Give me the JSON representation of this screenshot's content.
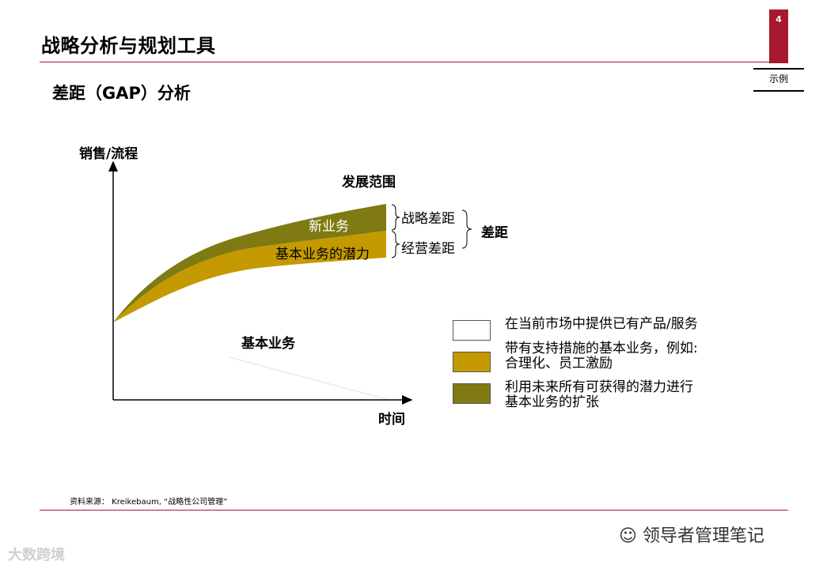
{
  "page_number": "4",
  "title": "战略分析与规划工具",
  "sample_label": "示例",
  "subtitle": "差距（GAP）分析",
  "diagram": {
    "y_axis_label": "销售/流程",
    "x_axis_label": "时间",
    "top_label": "发展范围",
    "band_new_label": "新业务",
    "band_potential_label": "基本业务的潜力",
    "strategic_gap_label": "战略差距",
    "operational_gap_label": "经营差距",
    "gap_label": "差距",
    "base_label": "基本业务"
  },
  "legend": [
    {
      "color": "#ffffff",
      "line1": "在当前市场中提供已有产品/服务",
      "line2": ""
    },
    {
      "color": "#c49a00",
      "line1": "带有支持措施的基本业务，例如:",
      "line2": "合理化、员工激励"
    },
    {
      "color": "#7f7a12",
      "line1": "利用未来所有可获得的潜力进行",
      "line2": "基本业务的扩张"
    }
  ],
  "colors": {
    "accent": "#a6192e",
    "gold": "#c49a00",
    "olive": "#7f7a12"
  },
  "source": "资料来源： Kreikebaum, “战略性公司管理”",
  "watermark_right": "领导者管理笔记",
  "watermark_left": "大数跨境"
}
